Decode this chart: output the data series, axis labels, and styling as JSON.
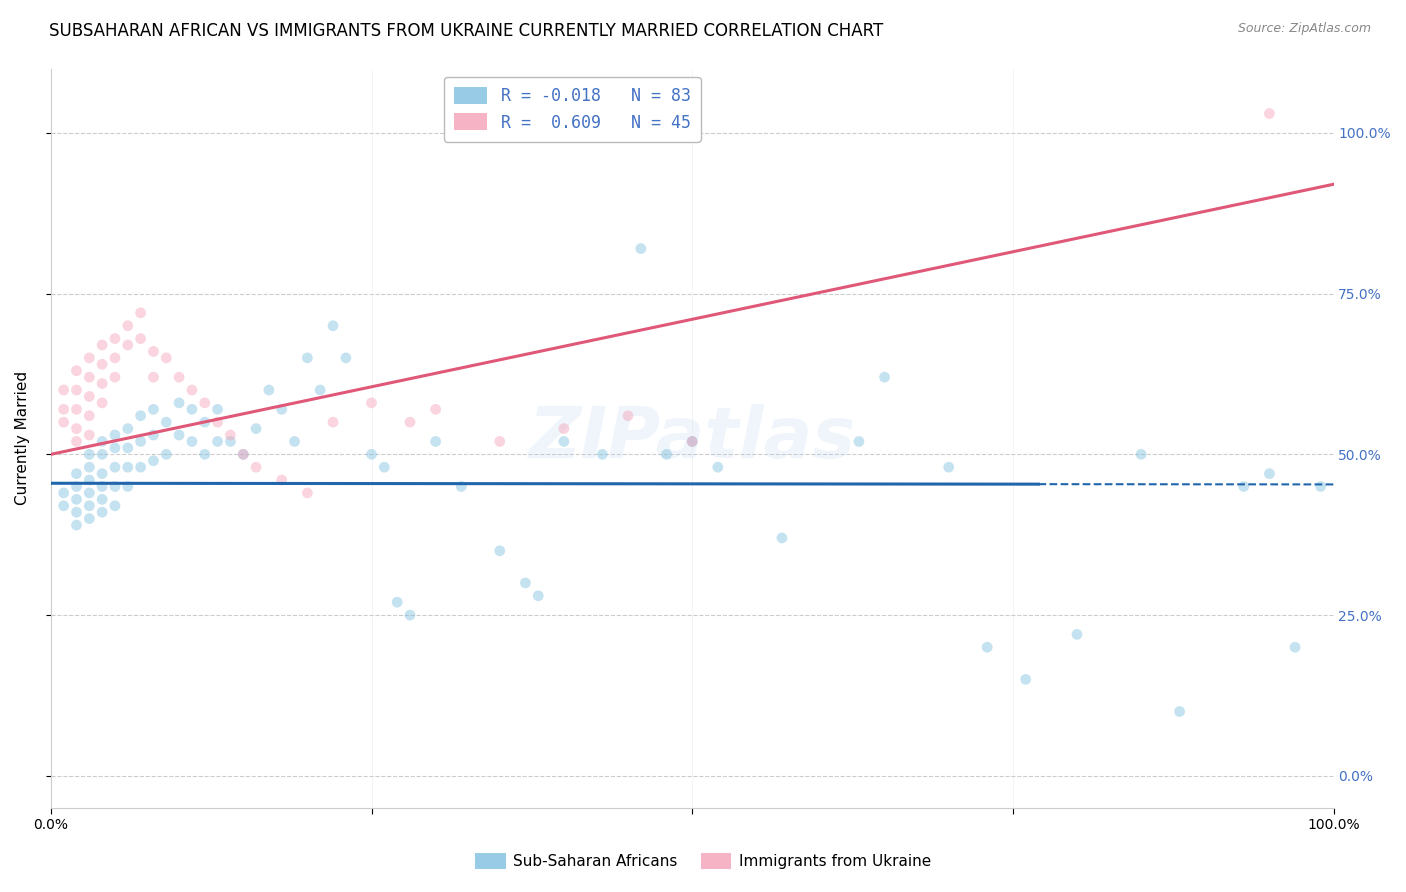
{
  "title": "SUBSAHARAN AFRICAN VS IMMIGRANTS FROM UKRAINE CURRENTLY MARRIED CORRELATION CHART",
  "source": "Source: ZipAtlas.com",
  "ylabel": "Currently Married",
  "ytick_labels": [
    "0.0%",
    "25.0%",
    "50.0%",
    "75.0%",
    "100.0%"
  ],
  "ytick_values": [
    0.0,
    0.25,
    0.5,
    0.75,
    1.0
  ],
  "xlim": [
    0.0,
    1.0
  ],
  "ylim": [
    -0.05,
    1.1
  ],
  "watermark": "ZIPatlas",
  "blue_color": "#7fbfdf",
  "pink_color": "#f4a0b8",
  "blue_line_color": "#2166ac",
  "pink_line_color": "#e05878",
  "right_ytick_color": "#4472c4",
  "grid_color": "#cccccc",
  "background_color": "#ffffff",
  "title_fontsize": 12,
  "axis_label_fontsize": 11,
  "tick_fontsize": 10,
  "marker_size": 60,
  "marker_alpha": 0.45,
  "blue_trendline_solid_end": 0.77,
  "blue_x": [
    0.01,
    0.01,
    0.02,
    0.02,
    0.02,
    0.02,
    0.02,
    0.03,
    0.03,
    0.03,
    0.03,
    0.03,
    0.03,
    0.04,
    0.04,
    0.04,
    0.04,
    0.04,
    0.04,
    0.05,
    0.05,
    0.05,
    0.05,
    0.05,
    0.06,
    0.06,
    0.06,
    0.06,
    0.07,
    0.07,
    0.07,
    0.08,
    0.08,
    0.08,
    0.09,
    0.09,
    0.1,
    0.1,
    0.11,
    0.11,
    0.12,
    0.12,
    0.13,
    0.13,
    0.14,
    0.15,
    0.16,
    0.17,
    0.18,
    0.19,
    0.2,
    0.21,
    0.22,
    0.23,
    0.25,
    0.26,
    0.27,
    0.28,
    0.3,
    0.32,
    0.35,
    0.37,
    0.38,
    0.4,
    0.43,
    0.46,
    0.48,
    0.5,
    0.52,
    0.57,
    0.63,
    0.65,
    0.7,
    0.73,
    0.76,
    0.8,
    0.85,
    0.88,
    0.93,
    0.95,
    0.97,
    0.99
  ],
  "blue_y": [
    0.44,
    0.42,
    0.47,
    0.45,
    0.43,
    0.41,
    0.39,
    0.5,
    0.48,
    0.46,
    0.44,
    0.42,
    0.4,
    0.52,
    0.5,
    0.47,
    0.45,
    0.43,
    0.41,
    0.53,
    0.51,
    0.48,
    0.45,
    0.42,
    0.54,
    0.51,
    0.48,
    0.45,
    0.56,
    0.52,
    0.48,
    0.57,
    0.53,
    0.49,
    0.55,
    0.5,
    0.58,
    0.53,
    0.57,
    0.52,
    0.55,
    0.5,
    0.57,
    0.52,
    0.52,
    0.5,
    0.54,
    0.6,
    0.57,
    0.52,
    0.65,
    0.6,
    0.7,
    0.65,
    0.5,
    0.48,
    0.27,
    0.25,
    0.52,
    0.45,
    0.35,
    0.3,
    0.28,
    0.52,
    0.5,
    0.82,
    0.5,
    0.52,
    0.48,
    0.37,
    0.52,
    0.62,
    0.48,
    0.2,
    0.15,
    0.22,
    0.5,
    0.1,
    0.45,
    0.47,
    0.2,
    0.45
  ],
  "pink_x": [
    0.01,
    0.01,
    0.01,
    0.02,
    0.02,
    0.02,
    0.02,
    0.02,
    0.03,
    0.03,
    0.03,
    0.03,
    0.03,
    0.04,
    0.04,
    0.04,
    0.04,
    0.05,
    0.05,
    0.05,
    0.06,
    0.06,
    0.07,
    0.07,
    0.08,
    0.08,
    0.09,
    0.1,
    0.11,
    0.12,
    0.13,
    0.14,
    0.15,
    0.16,
    0.18,
    0.2,
    0.22,
    0.25,
    0.28,
    0.3,
    0.35,
    0.4,
    0.45,
    0.5,
    0.95
  ],
  "pink_y": [
    0.6,
    0.57,
    0.55,
    0.63,
    0.6,
    0.57,
    0.54,
    0.52,
    0.65,
    0.62,
    0.59,
    0.56,
    0.53,
    0.67,
    0.64,
    0.61,
    0.58,
    0.68,
    0.65,
    0.62,
    0.7,
    0.67,
    0.72,
    0.68,
    0.66,
    0.62,
    0.65,
    0.62,
    0.6,
    0.58,
    0.55,
    0.53,
    0.5,
    0.48,
    0.46,
    0.44,
    0.55,
    0.58,
    0.55,
    0.57,
    0.52,
    0.54,
    0.56,
    0.52,
    1.03
  ]
}
